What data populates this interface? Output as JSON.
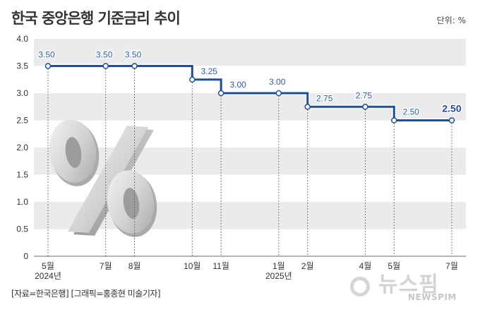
{
  "header": {
    "title": "한국 중앙은행 기준금리 추이",
    "unit": "단위: %"
  },
  "footer": {
    "source": "[자료=한국은행] [그래픽=홍종현 미술기자]"
  },
  "watermark": {
    "korean": "뉴스핌",
    "english": "NEWSPIM"
  },
  "chart_data": {
    "type": "line",
    "title": "한국 중앙은행 기준금리 추이",
    "ylim": [
      0,
      4.0
    ],
    "yticks": [
      "0",
      "0.5",
      "1.0",
      "1.5",
      "2.0",
      "2.5",
      "3.0",
      "3.5",
      "4.0"
    ],
    "grid": "alternating horizontal bands",
    "step": true,
    "series": [
      {
        "points": [
          {
            "x": "2024-05",
            "y": 3.5,
            "label": "3.50"
          },
          {
            "x": "2024-07",
            "y": 3.5,
            "label": "3.50"
          },
          {
            "x": "2024-08",
            "y": 3.5,
            "label": "3.50"
          },
          {
            "x": "2024-10",
            "y": 3.25,
            "label": "3.25"
          },
          {
            "x": "2024-11",
            "y": 3.0,
            "label": "3.00"
          },
          {
            "x": "2025-01",
            "y": 3.0,
            "label": "3.00"
          },
          {
            "x": "2025-02",
            "y": 2.75,
            "label": "2.75"
          },
          {
            "x": "2025-04",
            "y": 2.75,
            "label": "2.75"
          },
          {
            "x": "2025-05",
            "y": 2.5,
            "label": "2.50"
          },
          {
            "x": "2025-07",
            "y": 2.5,
            "label": "2.50",
            "highlight": true
          }
        ]
      }
    ],
    "xticks": [
      {
        "x": "2024-05",
        "label": "5월",
        "year": "2024년"
      },
      {
        "x": "2024-07",
        "label": "7월"
      },
      {
        "x": "2024-08",
        "label": "8월"
      },
      {
        "x": "2024-10",
        "label": "10월"
      },
      {
        "x": "2024-11",
        "label": "11월"
      },
      {
        "x": "2025-01",
        "label": "1월",
        "year": "2025년"
      },
      {
        "x": "2025-02",
        "label": "2월"
      },
      {
        "x": "2025-04",
        "label": "4월"
      },
      {
        "x": "2025-05",
        "label": "5월"
      },
      {
        "x": "2025-07",
        "label": "7월"
      }
    ],
    "colors": {
      "line": "#1f4e9c",
      "label": "#2a5db0",
      "band": "#ebebeb"
    },
    "decoration": "3d-percent-sign"
  }
}
